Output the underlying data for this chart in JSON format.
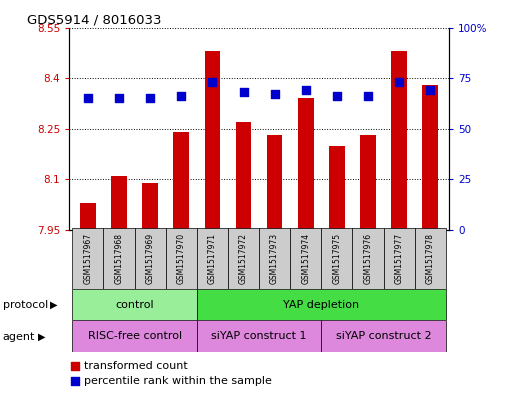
{
  "title": "GDS5914 / 8016033",
  "samples": [
    "GSM1517967",
    "GSM1517968",
    "GSM1517969",
    "GSM1517970",
    "GSM1517971",
    "GSM1517972",
    "GSM1517973",
    "GSM1517974",
    "GSM1517975",
    "GSM1517976",
    "GSM1517977",
    "GSM1517978"
  ],
  "transformed_counts": [
    8.03,
    8.11,
    8.09,
    8.24,
    8.48,
    8.27,
    8.23,
    8.34,
    8.2,
    8.23,
    8.48,
    8.38
  ],
  "percentile_ranks": [
    65,
    65,
    65,
    66,
    73,
    68,
    67,
    69,
    66,
    66,
    73,
    69
  ],
  "ylim_left": [
    7.95,
    8.55
  ],
  "ylim_right": [
    0,
    100
  ],
  "yticks_left": [
    7.95,
    8.1,
    8.25,
    8.4,
    8.55
  ],
  "yticks_right": [
    0,
    25,
    50,
    75,
    100
  ],
  "ytick_labels_left": [
    "7.95",
    "8.1",
    "8.25",
    "8.4",
    "8.55"
  ],
  "ytick_labels_right": [
    "0",
    "25",
    "50",
    "75",
    "100%"
  ],
  "bar_color": "#cc0000",
  "dot_color": "#0000cc",
  "protocol_groups": [
    {
      "label": "control",
      "start": 0,
      "end": 3,
      "color": "#99ee99"
    },
    {
      "label": "YAP depletion",
      "start": 4,
      "end": 11,
      "color": "#44dd44"
    }
  ],
  "agent_groups": [
    {
      "label": "RISC-free control",
      "start": 0,
      "end": 3,
      "color": "#dd88dd"
    },
    {
      "label": "siYAP construct 1",
      "start": 4,
      "end": 7,
      "color": "#dd88dd"
    },
    {
      "label": "siYAP construct 2",
      "start": 8,
      "end": 11,
      "color": "#dd88dd"
    }
  ],
  "legend_items": [
    {
      "label": "transformed count",
      "color": "#cc0000"
    },
    {
      "label": "percentile rank within the sample",
      "color": "#0000cc"
    }
  ],
  "bar_width": 0.5,
  "sample_box_color": "#cccccc",
  "protocol_label": "protocol",
  "agent_label": "agent"
}
